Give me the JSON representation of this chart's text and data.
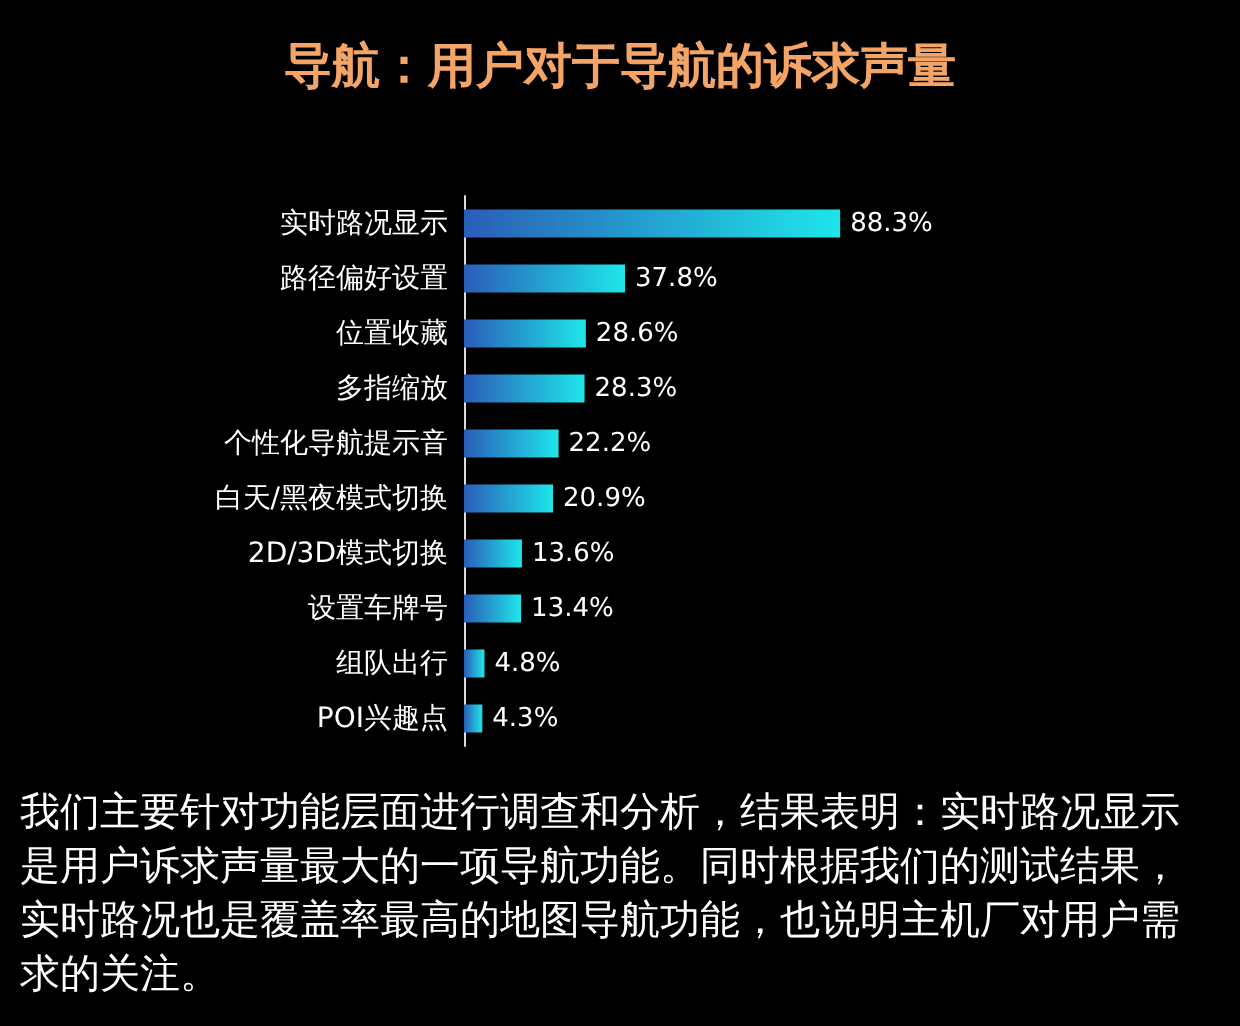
{
  "chart_data": {
    "type": "bar",
    "orientation": "horizontal",
    "title": "导航：用户对于导航的诉求声量",
    "categories": [
      "实时路况显示",
      "路径偏好设置",
      "位置收藏",
      "多指缩放",
      "个性化导航提示音",
      "白天/黑夜模式切换",
      "2D/3D模式切换",
      "设置车牌号",
      "组队出行",
      "POI兴趣点"
    ],
    "values": [
      88.3,
      37.8,
      28.6,
      28.3,
      22.2,
      20.9,
      13.6,
      13.4,
      4.8,
      4.3
    ],
    "value_labels": [
      "88.3%",
      "37.8%",
      "28.6%",
      "28.3%",
      "22.2%",
      "20.9%",
      "13.6%",
      "13.4%",
      "4.8%",
      "4.3%"
    ],
    "color": "#1ee6ea",
    "tick_labels": "y",
    "grid": false,
    "annotations": [
      "我们主要针对功能层面进行调查和分析，结果表明：实时路况显示是用户诉求声量最大的一项导航功能。同时根据我们的测试结果，实时路况也是覆盖率最高的地图导航功能，也说明主机厂对用户需求的关注。"
    ]
  }
}
